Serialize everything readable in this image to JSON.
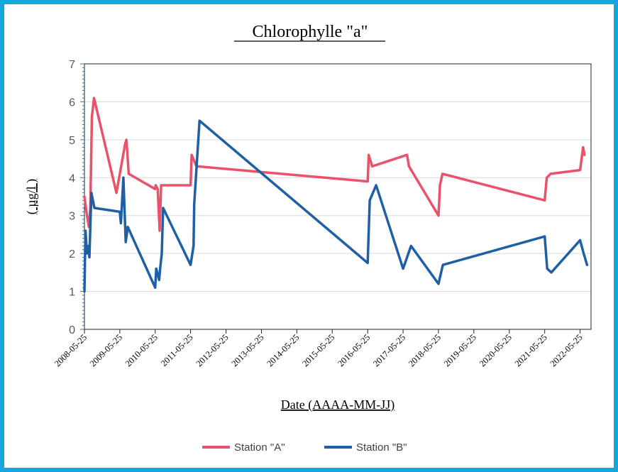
{
  "chart_data": {
    "type": "line",
    "title": "Chlorophylle \"a\"",
    "xlabel": "Date (AAAA-MM-JJ)",
    "ylabel": "( µg/l )",
    "ylim": [
      0,
      7
    ],
    "yticks": [
      "0",
      "1",
      "2",
      "3",
      "4",
      "5",
      "6",
      "7"
    ],
    "xlim": [
      "2008-05-25",
      "2022-09-15"
    ],
    "xticks": [
      "2008-05-25",
      "2009-05-25",
      "2010-05-25",
      "2011-05-25",
      "2012-05-25",
      "2013-05-25",
      "2014-05-25",
      "2015-05-25",
      "2016-05-25",
      "2017-05-25",
      "2018-05-25",
      "2019-05-25",
      "2020-05-25",
      "2021-05-25",
      "2022-05-25"
    ],
    "grid": "horizontal",
    "legend": "bottom",
    "series": [
      {
        "name": "Station \"A\"",
        "color": "#e8526a",
        "points": [
          [
            "2008-05-25",
            3.5
          ],
          [
            "2008-06-20",
            3.0
          ],
          [
            "2008-07-10",
            2.7
          ],
          [
            "2008-07-25",
            3.2
          ],
          [
            "2008-08-10",
            5.6
          ],
          [
            "2008-09-01",
            6.1
          ],
          [
            "2009-04-20",
            3.6
          ],
          [
            "2009-07-20",
            4.9
          ],
          [
            "2009-08-01",
            5.0
          ],
          [
            "2009-08-25",
            4.1
          ],
          [
            "2010-05-25",
            3.7
          ],
          [
            "2010-05-30",
            3.8
          ],
          [
            "2010-06-20",
            3.7
          ],
          [
            "2010-07-10",
            2.6
          ],
          [
            "2010-07-25",
            3.8
          ],
          [
            "2011-05-25",
            3.8
          ],
          [
            "2011-06-05",
            4.6
          ],
          [
            "2011-07-25",
            4.3
          ],
          [
            "2016-05-25",
            3.9
          ],
          [
            "2016-06-05",
            4.6
          ],
          [
            "2016-07-10",
            4.3
          ],
          [
            "2017-07-05",
            4.6
          ],
          [
            "2017-07-25",
            4.3
          ],
          [
            "2018-05-25",
            3.0
          ],
          [
            "2018-06-10",
            3.8
          ],
          [
            "2018-07-05",
            4.1
          ],
          [
            "2021-05-25",
            3.4
          ],
          [
            "2021-06-15",
            4.0
          ],
          [
            "2021-07-25",
            4.1
          ],
          [
            "2022-05-25",
            4.2
          ],
          [
            "2022-06-25",
            4.8
          ],
          [
            "2022-07-10",
            4.6
          ]
        ]
      },
      {
        "name": "Station \"B\"",
        "color": "#1f5fa3",
        "points": [
          [
            "2008-05-25",
            1.0
          ],
          [
            "2008-06-05",
            2.6
          ],
          [
            "2008-06-20",
            2.0
          ],
          [
            "2008-07-05",
            2.2
          ],
          [
            "2008-07-15",
            1.9
          ],
          [
            "2008-08-05",
            3.6
          ],
          [
            "2008-09-05",
            3.2
          ],
          [
            "2009-05-25",
            3.1
          ],
          [
            "2009-06-05",
            2.8
          ],
          [
            "2009-07-01",
            4.0
          ],
          [
            "2009-07-25",
            2.3
          ],
          [
            "2009-08-15",
            2.7
          ],
          [
            "2010-05-25",
            1.1
          ],
          [
            "2010-06-05",
            1.6
          ],
          [
            "2010-07-05",
            1.3
          ],
          [
            "2010-07-15",
            1.6
          ],
          [
            "2010-08-01",
            2.0
          ],
          [
            "2010-08-15",
            3.2
          ],
          [
            "2011-05-25",
            1.7
          ],
          [
            "2011-06-25",
            2.2
          ],
          [
            "2011-07-01",
            3.3
          ],
          [
            "2011-08-25",
            5.5
          ],
          [
            "2016-05-25",
            1.75
          ],
          [
            "2016-06-15",
            3.4
          ],
          [
            "2016-08-20",
            3.8
          ],
          [
            "2017-05-25",
            1.6
          ],
          [
            "2017-08-15",
            2.2
          ],
          [
            "2018-05-25",
            1.2
          ],
          [
            "2018-07-10",
            1.7
          ],
          [
            "2021-05-25",
            2.45
          ],
          [
            "2021-06-20",
            1.6
          ],
          [
            "2021-08-01",
            1.5
          ],
          [
            "2022-05-25",
            2.35
          ],
          [
            "2022-07-01",
            2.0
          ],
          [
            "2022-08-05",
            1.7
          ]
        ]
      }
    ]
  }
}
